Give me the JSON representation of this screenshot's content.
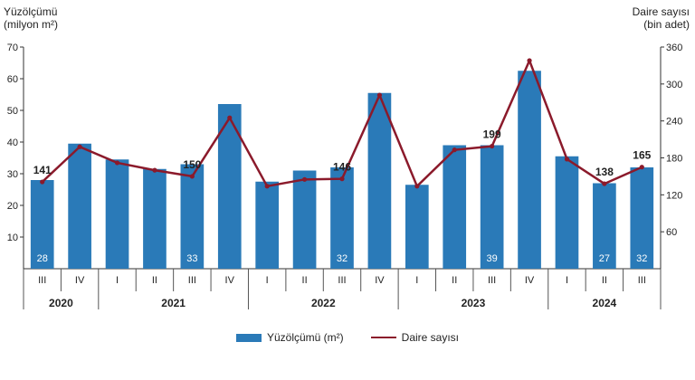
{
  "chart_data": {
    "type": "bar+line",
    "left_axis": {
      "title_line1": "Yüzölçümü",
      "title_line2": "(milyon m²)",
      "ticks": [
        10,
        20,
        30,
        40,
        50,
        60,
        70
      ],
      "ylim": [
        0,
        70
      ]
    },
    "right_axis": {
      "title_line1": "Daire sayısı",
      "title_line2": "(bin adet)",
      "ticks": [
        60,
        120,
        180,
        240,
        300,
        360
      ],
      "ylim": [
        0,
        360
      ]
    },
    "quarters": [
      "III",
      "IV",
      "I",
      "II",
      "III",
      "IV",
      "I",
      "II",
      "III",
      "IV",
      "I",
      "II",
      "III",
      "IV",
      "I",
      "II",
      "III"
    ],
    "years": [
      {
        "label": "2020",
        "span": 2
      },
      {
        "label": "2021",
        "span": 4
      },
      {
        "label": "2022",
        "span": 4
      },
      {
        "label": "2023",
        "span": 4
      },
      {
        "label": "2024",
        "span": 3
      }
    ],
    "series": [
      {
        "name": "Yüzölçümü (m²)",
        "kind": "bar",
        "color": "#2a7ab8",
        "values": [
          28,
          39.5,
          34.5,
          31.5,
          33,
          52,
          27.5,
          31,
          32,
          55.5,
          26.5,
          39,
          39,
          62.5,
          35.5,
          27,
          32
        ]
      },
      {
        "name": "Daire sayısı",
        "kind": "line",
        "color": "#8b1a2b",
        "values": [
          141,
          198,
          172,
          160,
          150,
          245,
          134,
          145,
          146,
          282,
          134,
          193,
          199,
          338,
          178,
          138,
          165
        ]
      }
    ],
    "bar_labels": [
      {
        "index": 0,
        "text": "28"
      },
      {
        "index": 4,
        "text": "33"
      },
      {
        "index": 8,
        "text": "32"
      },
      {
        "index": 12,
        "text": "39"
      },
      {
        "index": 15,
        "text": "27"
      },
      {
        "index": 16,
        "text": "32"
      }
    ],
    "line_labels": [
      {
        "index": 0,
        "text": "141"
      },
      {
        "index": 4,
        "text": "150"
      },
      {
        "index": 8,
        "text": "146"
      },
      {
        "index": 12,
        "text": "199"
      },
      {
        "index": 15,
        "text": "138"
      },
      {
        "index": 16,
        "text": "165"
      }
    ]
  }
}
